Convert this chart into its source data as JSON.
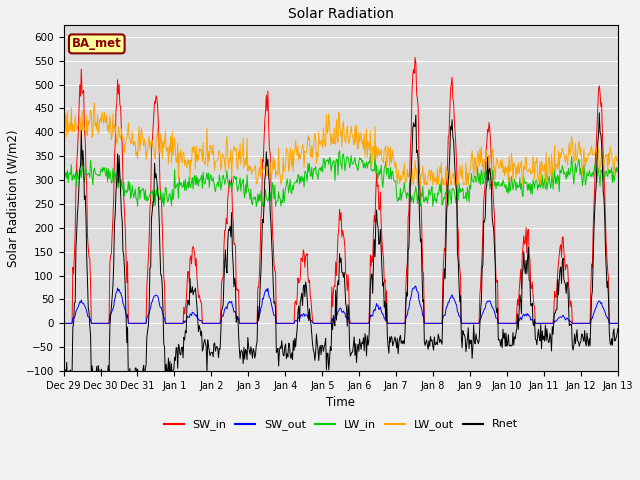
{
  "title": "Solar Radiation",
  "xlabel": "Time",
  "ylabel": "Solar Radiation (W/m2)",
  "ylim": [
    -100,
    625
  ],
  "yticks": [
    -100,
    -50,
    0,
    50,
    100,
    150,
    200,
    250,
    300,
    350,
    400,
    450,
    500,
    550,
    600
  ],
  "annotation": "BA_met",
  "annotation_color": "#8B0000",
  "annotation_bg": "#FFFF99",
  "plot_bg_color": "#DCDCDC",
  "fig_bg_color": "#F2F2F2",
  "line_colors": {
    "SW_in": "#FF0000",
    "SW_out": "#0000FF",
    "LW_in": "#00CC00",
    "LW_out": "#FFA500",
    "Rnet": "#000000"
  },
  "legend_labels": [
    "SW_in",
    "SW_out",
    "LW_in",
    "LW_out",
    "Rnet"
  ],
  "xtick_labels": [
    "Dec 29",
    "Dec 30",
    "Dec 31",
    "Jan 1",
    "Jan 2",
    "Jan 3",
    "Jan 4",
    "Jan 5",
    "Jan 6",
    "Jan 7",
    "Jan 8",
    "Jan 9",
    "Jan 10",
    "Jan 11",
    "Jan 12",
    "Jan 13"
  ],
  "n_days": 15,
  "pts_per_day": 48
}
